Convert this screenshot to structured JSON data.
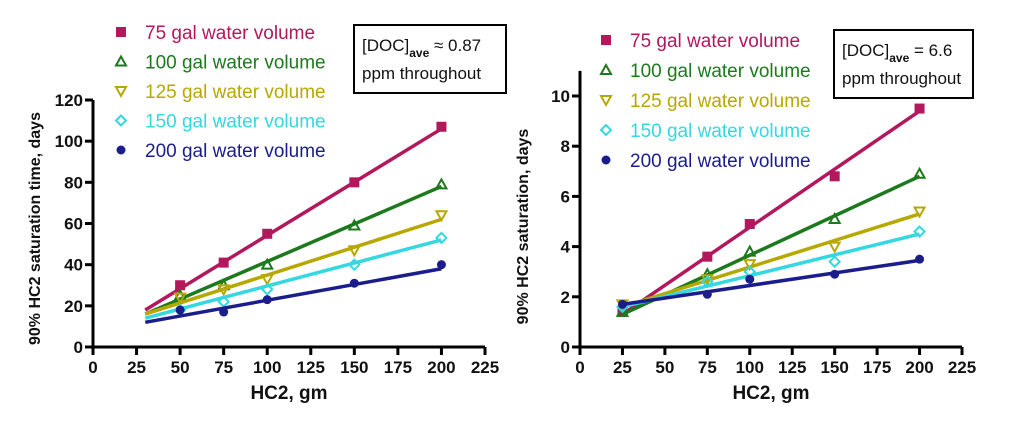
{
  "colors": {
    "75": "#b3175c",
    "100": "#1c7a1c",
    "125": "#b7a800",
    "150": "#35d7e0",
    "200": "#1b1d8c"
  },
  "chart_data": [
    {
      "type": "scatter",
      "xlabel": "HC2, gm",
      "ylabel": "90% HC2 saturation time, days",
      "xlim": [
        0,
        225
      ],
      "ylim": [
        0,
        120
      ],
      "xticks": [
        "0",
        "25",
        "50",
        "75",
        "100",
        "125",
        "150",
        "175",
        "200",
        "225"
      ],
      "yticks": [
        "0",
        "20",
        "40",
        "60",
        "80",
        "100",
        "120"
      ],
      "xtick_values": [
        0,
        25,
        50,
        75,
        100,
        125,
        150,
        175,
        200,
        225
      ],
      "ytick_values": [
        0,
        20,
        40,
        60,
        80,
        100,
        120
      ],
      "legend_position": "top",
      "annotation": {
        "main": "[DOC]",
        "sub": "ave",
        "rest": " ≈  0.87",
        "line2": "ppm throughout"
      },
      "series": [
        {
          "name": "75 gal water volume",
          "key": "75",
          "marker": "square",
          "x": [
            50,
            75,
            100,
            150,
            200
          ],
          "y": [
            30,
            41,
            55,
            80,
            107
          ],
          "fit": [
            [
              30,
              18
            ],
            [
              200,
              106
            ]
          ]
        },
        {
          "name": "100 gal water volume",
          "key": "100",
          "marker": "triangle-up",
          "x": [
            50,
            75,
            100,
            150,
            200
          ],
          "y": [
            25,
            30,
            40,
            59,
            79
          ],
          "fit": [
            [
              30,
              16
            ],
            [
              200,
              78
            ]
          ]
        },
        {
          "name": "125 gal water volume",
          "key": "125",
          "marker": "triangle-down",
          "x": [
            50,
            75,
            100,
            150,
            200
          ],
          "y": [
            24,
            28,
            33,
            47,
            64
          ],
          "fit": [
            [
              30,
              16
            ],
            [
              200,
              62
            ]
          ]
        },
        {
          "name": "150 gal water volume",
          "key": "150",
          "marker": "diamond",
          "x": [
            50,
            75,
            100,
            150,
            200
          ],
          "y": [
            18,
            22,
            28,
            40,
            53
          ],
          "fit": [
            [
              30,
              14
            ],
            [
              200,
              52
            ]
          ]
        },
        {
          "name": "200 gal water volume",
          "key": "200",
          "marker": "circle",
          "x": [
            50,
            75,
            100,
            150,
            200
          ],
          "y": [
            18,
            17,
            23,
            31,
            40
          ],
          "fit": [
            [
              30,
              12
            ],
            [
              200,
              38
            ]
          ]
        }
      ]
    },
    {
      "type": "scatter",
      "xlabel": "HC2, gm",
      "ylabel": "90% HC2 saturation, days",
      "xlim": [
        0,
        225
      ],
      "ylim": [
        0,
        11
      ],
      "xticks": [
        "0",
        "25",
        "50",
        "75",
        "100",
        "125",
        "150",
        "175",
        "200",
        "225"
      ],
      "yticks": [
        "0",
        "2",
        "4",
        "6",
        "8",
        "10"
      ],
      "xtick_values": [
        0,
        25,
        50,
        75,
        100,
        125,
        150,
        175,
        200,
        225
      ],
      "ytick_values": [
        0,
        2,
        4,
        6,
        8,
        10
      ],
      "legend_position": "top",
      "annotation": {
        "main": "[DOC]",
        "sub": "ave",
        "rest": " = 6.6",
        "line2": "ppm throughout"
      },
      "series": [
        {
          "name": "75 gal water volume",
          "key": "75",
          "marker": "square",
          "x": [
            25,
            75,
            100,
            150,
            200
          ],
          "y": [
            1.4,
            3.6,
            4.9,
            6.8,
            9.5
          ],
          "fit": [
            [
              25,
              1.3
            ],
            [
              200,
              9.4
            ]
          ]
        },
        {
          "name": "100 gal water volume",
          "key": "100",
          "marker": "triangle-up",
          "x": [
            25,
            75,
            100,
            150,
            200
          ],
          "y": [
            1.4,
            2.9,
            3.8,
            5.1,
            6.9
          ],
          "fit": [
            [
              25,
              1.3
            ],
            [
              200,
              6.8
            ]
          ]
        },
        {
          "name": "125 gal water volume",
          "key": "125",
          "marker": "triangle-down",
          "x": [
            25,
            75,
            100,
            150,
            200
          ],
          "y": [
            1.7,
            2.7,
            3.3,
            4.0,
            5.4
          ],
          "fit": [
            [
              25,
              1.6
            ],
            [
              200,
              5.3
            ]
          ]
        },
        {
          "name": "150 gal water volume",
          "key": "150",
          "marker": "diamond",
          "x": [
            25,
            75,
            100,
            150,
            200
          ],
          "y": [
            1.6,
            2.6,
            3.0,
            3.4,
            4.6
          ],
          "fit": [
            [
              25,
              1.6
            ],
            [
              200,
              4.5
            ]
          ]
        },
        {
          "name": "200 gal water volume",
          "key": "200",
          "marker": "circle",
          "x": [
            25,
            75,
            100,
            150,
            200
          ],
          "y": [
            1.7,
            2.1,
            2.7,
            2.9,
            3.5
          ],
          "fit": [
            [
              25,
              1.7
            ],
            [
              200,
              3.45
            ]
          ]
        }
      ]
    }
  ]
}
